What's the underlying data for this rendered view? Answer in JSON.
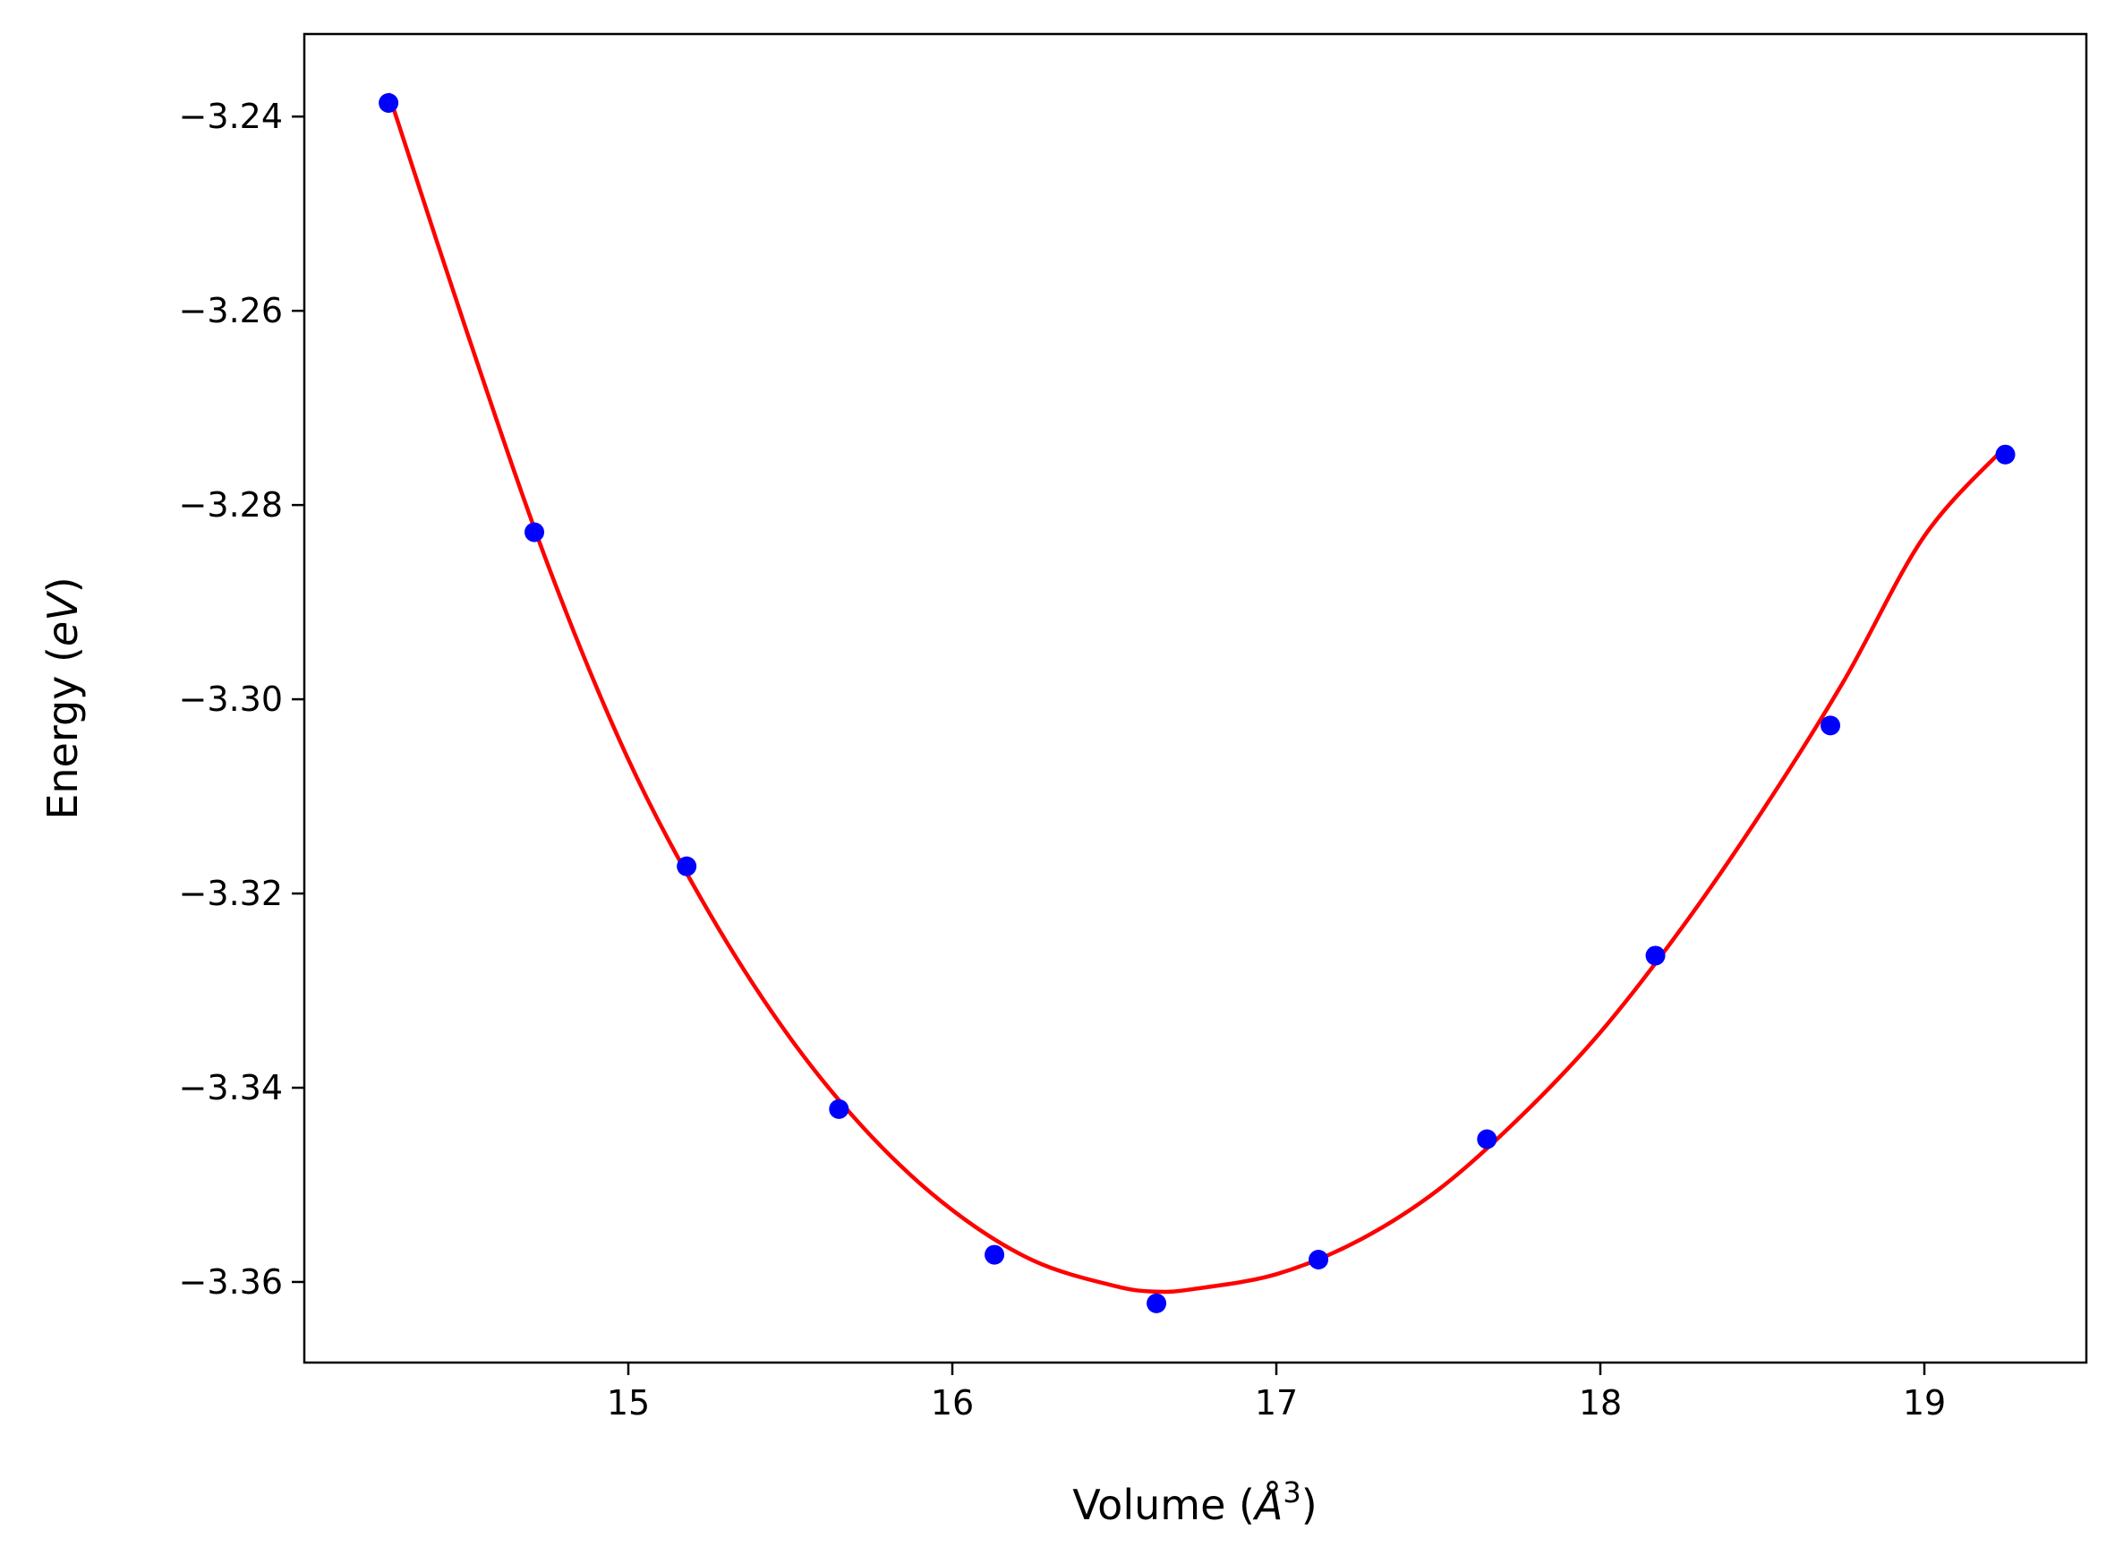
{
  "chart_data": {
    "type": "scatter",
    "title": "",
    "xlabel": "Volume (",
    "xlabel_symbol": "Å",
    "xlabel_exponent": "3",
    "xlabel_close": ")",
    "ylabel": "Energy (",
    "ylabel_unit": "eV",
    "ylabel_close": ")",
    "xlim": [
      14.0,
      19.5
    ],
    "ylim": [
      -3.3683,
      -3.2315
    ],
    "x_ticks": [
      15,
      16,
      17,
      18,
      19
    ],
    "x_tick_labels": [
      "15",
      "16",
      "17",
      "18",
      "19"
    ],
    "y_ticks": [
      -3.24,
      -3.26,
      -3.28,
      -3.3,
      -3.32,
      -3.34,
      -3.36
    ],
    "y_tick_labels": [
      "−3.24",
      "−3.26",
      "−3.28",
      "−3.30",
      "−3.32",
      "−3.34",
      "−3.36"
    ],
    "grid": false,
    "legend": "none",
    "series": [
      {
        "kind": "points",
        "color": "#0000ff",
        "x": [
          14.26,
          14.71,
          15.18,
          15.65,
          16.13,
          16.63,
          17.13,
          17.65,
          18.17,
          18.71,
          19.25
        ],
        "y": [
          -3.2386,
          -3.2828,
          -3.3172,
          -3.3422,
          -3.3572,
          -3.3622,
          -3.3577,
          -3.3453,
          -3.3264,
          -3.3027,
          -3.2748
        ]
      },
      {
        "kind": "fit-line",
        "color": "#ff0000",
        "x": [
          14.26,
          14.5,
          14.75,
          15.0,
          15.25,
          15.5,
          15.75,
          16.0,
          16.25,
          16.5,
          16.63,
          16.75,
          17.0,
          17.25,
          17.5,
          17.75,
          18.0,
          18.25,
          18.5,
          18.75,
          19.0,
          19.25
        ],
        "y": [
          -3.2376,
          -3.262,
          -3.286,
          -3.3062,
          -3.322,
          -3.3349,
          -3.345,
          -3.3526,
          -3.3578,
          -3.3604,
          -3.361,
          -3.3607,
          -3.3592,
          -3.3558,
          -3.3505,
          -3.3431,
          -3.3343,
          -3.3236,
          -3.3115,
          -3.2982,
          -3.2832,
          -3.274
        ]
      }
    ]
  }
}
